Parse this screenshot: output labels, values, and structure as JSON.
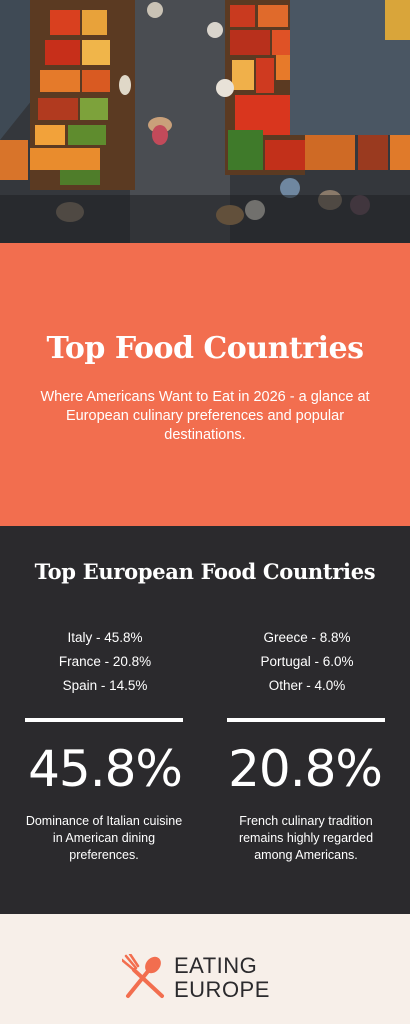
{
  "hero": {
    "image": "market-stalls-photo"
  },
  "intro": {
    "title": "Top Food Countries",
    "subtitle": "Where Americans Want to Eat in 2026 - a glance at European culinary preferences and popular destinations."
  },
  "stats": {
    "heading": "Top European Food Countries",
    "left_list": [
      "Italy - 45.8%",
      "France - 20.8%",
      "Spain - 14.5%"
    ],
    "right_list": [
      "Greece - 8.8%",
      "Portugal - 6.0%",
      "Other - 4.0%"
    ],
    "highlight_left": {
      "value": "45.8%",
      "description": "Dominance of Italian cuisine in American dining preferences."
    },
    "highlight_right": {
      "value": "20.8%",
      "description": "French culinary tradition remains highly regarded among Americans."
    }
  },
  "footer": {
    "logo_line1": "EATING",
    "logo_line2": "EUROPE",
    "logo_color": "#f26e4f"
  },
  "colors": {
    "coral": "#f26e4f",
    "dark": "#2b2a2d",
    "cream": "#f7efe9"
  }
}
